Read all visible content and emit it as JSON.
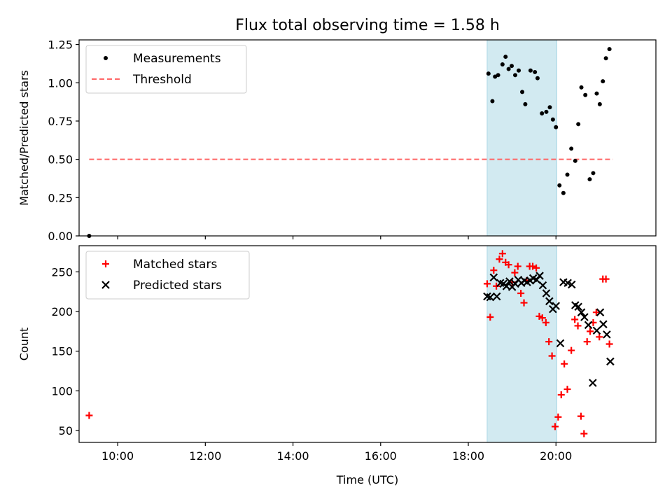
{
  "title": "Flux total observing time = 1.58 h",
  "colors": {
    "measurement": "#000000",
    "threshold": "#ff6666",
    "matched": "#ff0000",
    "predicted": "#000000",
    "window": "#add8e6"
  },
  "chart_data": [
    {
      "type": "scatter",
      "panel": "top",
      "ylabel": "Matched/Predicted stars",
      "xlim": [
        9.12,
        22.28
      ],
      "ylim": [
        0.0,
        1.28
      ],
      "yticks": [
        0.0,
        0.25,
        0.5,
        0.75,
        1.0,
        1.25
      ],
      "ytick_labels": [
        "0.00",
        "0.25",
        "0.50",
        "0.75",
        "1.00",
        "1.25"
      ],
      "xticks": [
        10,
        12,
        14,
        16,
        18,
        20
      ],
      "shaded_window": [
        18.43,
        20.02
      ],
      "legend": {
        "placement": "top-left",
        "entries": [
          {
            "label": "Measurements",
            "marker": "dot"
          },
          {
            "label": "Threshold",
            "marker": "dashed-line"
          }
        ]
      },
      "threshold": {
        "name": "Threshold",
        "y": 0.5,
        "x_range": [
          9.35,
          21.3
        ]
      },
      "series": [
        {
          "name": "Measurements",
          "marker": "dot",
          "x": [
            9.35,
            18.46,
            18.55,
            18.61,
            18.68,
            18.78,
            18.85,
            18.92,
            18.99,
            19.07,
            19.15,
            19.23,
            19.3,
            19.42,
            19.52,
            19.58,
            19.68,
            19.78,
            19.86,
            19.93,
            20.0,
            20.08,
            20.17,
            20.26,
            20.35,
            20.44,
            20.51,
            20.58,
            20.67,
            20.77,
            20.85,
            20.93,
            21.0,
            21.07,
            21.14,
            21.22
          ],
          "y": [
            0.0,
            1.06,
            0.88,
            1.04,
            1.05,
            1.12,
            1.17,
            1.09,
            1.11,
            1.05,
            1.08,
            0.94,
            0.86,
            1.08,
            1.07,
            1.03,
            0.8,
            0.81,
            0.84,
            0.76,
            0.71,
            0.33,
            0.28,
            0.4,
            0.57,
            0.49,
            0.73,
            0.97,
            0.92,
            0.37,
            0.41,
            0.93,
            0.86,
            1.01,
            1.16,
            1.22
          ]
        }
      ]
    },
    {
      "type": "scatter",
      "panel": "bottom",
      "xlabel": "Time (UTC)",
      "ylabel": "Count",
      "xlim": [
        9.12,
        22.28
      ],
      "ylim": [
        35,
        283
      ],
      "yticks": [
        50,
        100,
        150,
        200,
        250
      ],
      "ytick_labels": [
        "50",
        "100",
        "150",
        "200",
        "250"
      ],
      "xticks": [
        10,
        12,
        14,
        16,
        18,
        20
      ],
      "xtick_labels": [
        "10:00",
        "12:00",
        "14:00",
        "16:00",
        "18:00",
        "20:00"
      ],
      "shaded_window": [
        18.43,
        20.02
      ],
      "legend": {
        "placement": "top-left",
        "entries": [
          {
            "label": "Matched stars",
            "marker": "plus"
          },
          {
            "label": "Predicted stars",
            "marker": "x"
          }
        ]
      },
      "series": [
        {
          "name": "Matched stars",
          "marker": "plus",
          "x": [
            9.35,
            18.43,
            18.5,
            18.58,
            18.64,
            18.71,
            18.78,
            18.85,
            18.92,
            19.0,
            19.06,
            19.13,
            19.2,
            19.27,
            19.33,
            19.4,
            19.47,
            19.55,
            19.62,
            19.69,
            19.77,
            19.84,
            19.91,
            19.98,
            20.05,
            20.12,
            20.19,
            20.26,
            20.35,
            20.43,
            20.5,
            20.57,
            20.64,
            20.71,
            20.78,
            20.85,
            20.92,
            20.99,
            21.07,
            21.14,
            21.22
          ],
          "y": [
            69,
            235,
            193,
            252,
            232,
            266,
            273,
            262,
            259,
            237,
            249,
            257,
            223,
            211,
            239,
            257,
            257,
            255,
            194,
            192,
            186,
            162,
            144,
            55,
            67,
            95,
            134,
            102,
            151,
            190,
            182,
            68,
            46,
            162,
            175,
            186,
            199,
            168,
            241,
            241,
            159
          ]
        },
        {
          "name": "Predicted stars",
          "marker": "x",
          "x": [
            18.43,
            18.5,
            18.58,
            18.65,
            18.73,
            18.8,
            18.87,
            18.94,
            19.0,
            19.07,
            19.14,
            19.21,
            19.28,
            19.34,
            19.41,
            19.48,
            19.56,
            19.63,
            19.7,
            19.78,
            19.85,
            19.93,
            20.0,
            20.1,
            20.17,
            20.27,
            20.36,
            20.44,
            20.51,
            20.58,
            20.65,
            20.74,
            20.84,
            20.93,
            21.01,
            21.08,
            21.16,
            21.24
          ],
          "y": [
            219,
            218,
            243,
            219,
            236,
            235,
            232,
            238,
            231,
            235,
            240,
            236,
            239,
            237,
            239,
            242,
            240,
            245,
            233,
            223,
            213,
            203,
            207,
            160,
            237,
            236,
            234,
            208,
            206,
            199,
            193,
            183,
            110,
            176,
            199,
            184,
            171,
            137
          ]
        }
      ]
    }
  ]
}
